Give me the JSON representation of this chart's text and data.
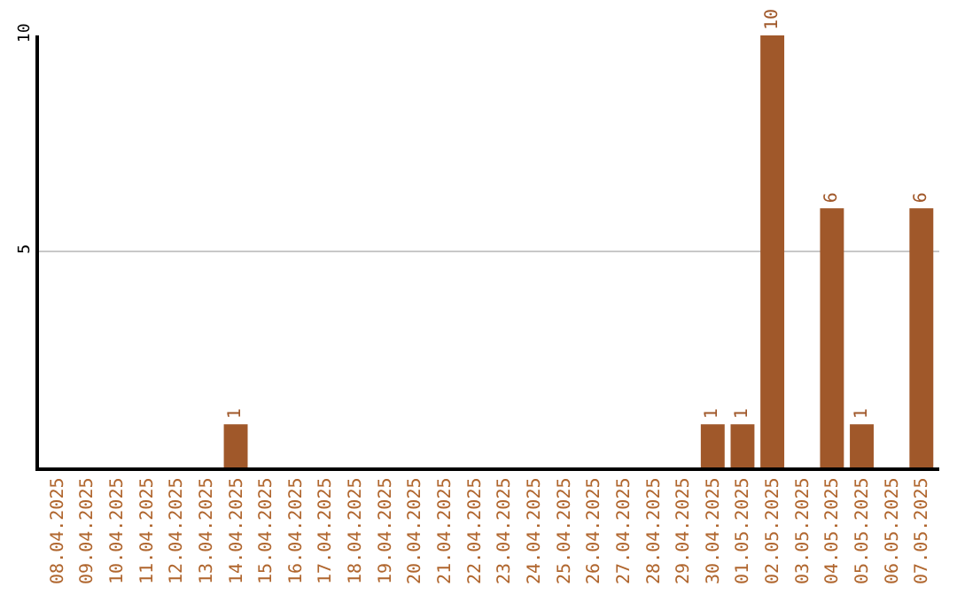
{
  "chart_data": {
    "type": "bar",
    "categories": [
      "08.04.2025",
      "09.04.2025",
      "10.04.2025",
      "11.04.2025",
      "12.04.2025",
      "13.04.2025",
      "14.04.2025",
      "15.04.2025",
      "16.04.2025",
      "17.04.2025",
      "18.04.2025",
      "19.04.2025",
      "20.04.2025",
      "21.04.2025",
      "22.04.2025",
      "23.04.2025",
      "24.04.2025",
      "25.04.2025",
      "26.04.2025",
      "27.04.2025",
      "28.04.2025",
      "29.04.2025",
      "30.04.2025",
      "01.05.2025",
      "02.05.2025",
      "03.05.2025",
      "04.05.2025",
      "05.05.2025",
      "06.05.2025",
      "07.05.2025"
    ],
    "values": [
      0,
      0,
      0,
      0,
      0,
      0,
      1,
      0,
      0,
      0,
      0,
      0,
      0,
      0,
      0,
      0,
      0,
      0,
      0,
      0,
      0,
      0,
      1,
      1,
      10,
      0,
      6,
      1,
      0,
      6
    ],
    "value_labels": [
      null,
      null,
      null,
      null,
      null,
      null,
      "1",
      null,
      null,
      null,
      null,
      null,
      null,
      null,
      null,
      null,
      null,
      null,
      null,
      null,
      null,
      null,
      "1",
      "1",
      "10",
      null,
      "6",
      "1",
      null,
      "6"
    ],
    "color": "#a0582a",
    "ylim": [
      0,
      10
    ],
    "yticks": [
      5,
      10
    ],
    "grid": "y",
    "legend": false
  }
}
